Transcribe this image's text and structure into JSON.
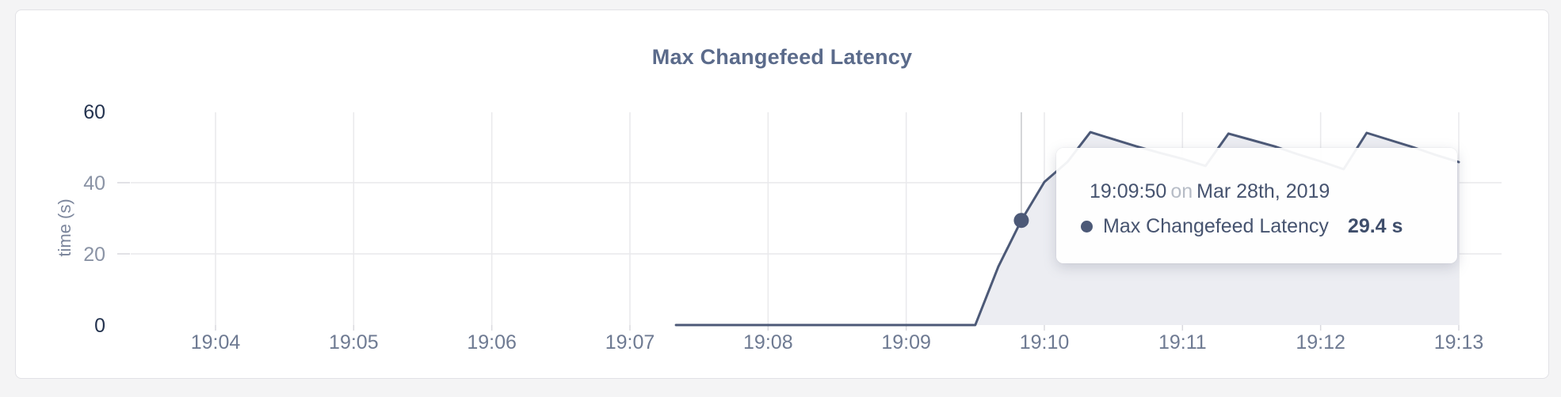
{
  "page": {
    "background": "#f4f4f5"
  },
  "card": {
    "background": "#ffffff",
    "border_color": "#e2e2e6"
  },
  "colors": {
    "line": "#4c5977",
    "area_fill": "#ecedf2",
    "grid": "#e9e9ec",
    "tick_dash": "#d9d9de",
    "crosshair": "#c7c8cc",
    "y_tick_strong": "#24334f",
    "y_tick_muted": "#8a93a5",
    "x_tick": "#6e7a92",
    "title": "#5b6b8b"
  },
  "chart_data": {
    "type": "area",
    "title": "Max Changefeed Latency",
    "xlabel": "",
    "ylabel": "time (s)",
    "ylim": [
      0,
      60
    ],
    "grid": true,
    "legend_position": "none",
    "yticks": [
      {
        "value": 0,
        "strong": true,
        "grid": false
      },
      {
        "value": 20,
        "strong": false,
        "grid": true
      },
      {
        "value": 40,
        "strong": false,
        "grid": true
      },
      {
        "value": 60,
        "strong": true,
        "grid": false
      }
    ],
    "xticks": [
      "19:04",
      "19:05",
      "19:06",
      "19:07",
      "19:08",
      "19:09",
      "19:10",
      "19:11",
      "19:12",
      "19:13"
    ],
    "series": [
      {
        "name": "Max Changefeed Latency",
        "unit": "s",
        "points": [
          [
            "19:07:20",
            0
          ],
          [
            "19:07:30",
            0
          ],
          [
            "19:07:40",
            0
          ],
          [
            "19:07:50",
            0
          ],
          [
            "19:08:00",
            0
          ],
          [
            "19:08:10",
            0
          ],
          [
            "19:08:20",
            0
          ],
          [
            "19:08:30",
            0
          ],
          [
            "19:08:40",
            0
          ],
          [
            "19:08:50",
            0
          ],
          [
            "19:09:00",
            0
          ],
          [
            "19:09:10",
            0
          ],
          [
            "19:09:20",
            0
          ],
          [
            "19:09:30",
            0
          ],
          [
            "19:09:40",
            16.4
          ],
          [
            "19:09:50",
            29.4
          ],
          [
            "19:10:00",
            40.2
          ],
          [
            "19:10:10",
            45.8
          ],
          [
            "19:10:20",
            54.2
          ],
          [
            "19:10:30",
            52.2
          ],
          [
            "19:10:40",
            50.2
          ],
          [
            "19:10:50",
            48.4
          ],
          [
            "19:11:00",
            46.7
          ],
          [
            "19:11:10",
            44.7
          ],
          [
            "19:11:20",
            53.8
          ],
          [
            "19:11:30",
            52.0
          ],
          [
            "19:11:40",
            50.2
          ],
          [
            "19:11:50",
            48.0
          ],
          [
            "19:12:00",
            46.0
          ],
          [
            "19:12:10",
            43.8
          ],
          [
            "19:12:20",
            54.0
          ],
          [
            "19:12:30",
            52.0
          ],
          [
            "19:12:40",
            50.0
          ],
          [
            "19:12:50",
            47.8
          ],
          [
            "19:13:00",
            45.8
          ]
        ]
      }
    ],
    "hover_point": {
      "time": "19:09:50",
      "value": 29.4
    }
  },
  "tooltip": {
    "time": "19:09:50",
    "conjunction": "on",
    "date": "Mar 28th, 2019",
    "series_label": "Max Changefeed Latency",
    "value": "29.4 s",
    "dot_color": "#4c5977"
  }
}
